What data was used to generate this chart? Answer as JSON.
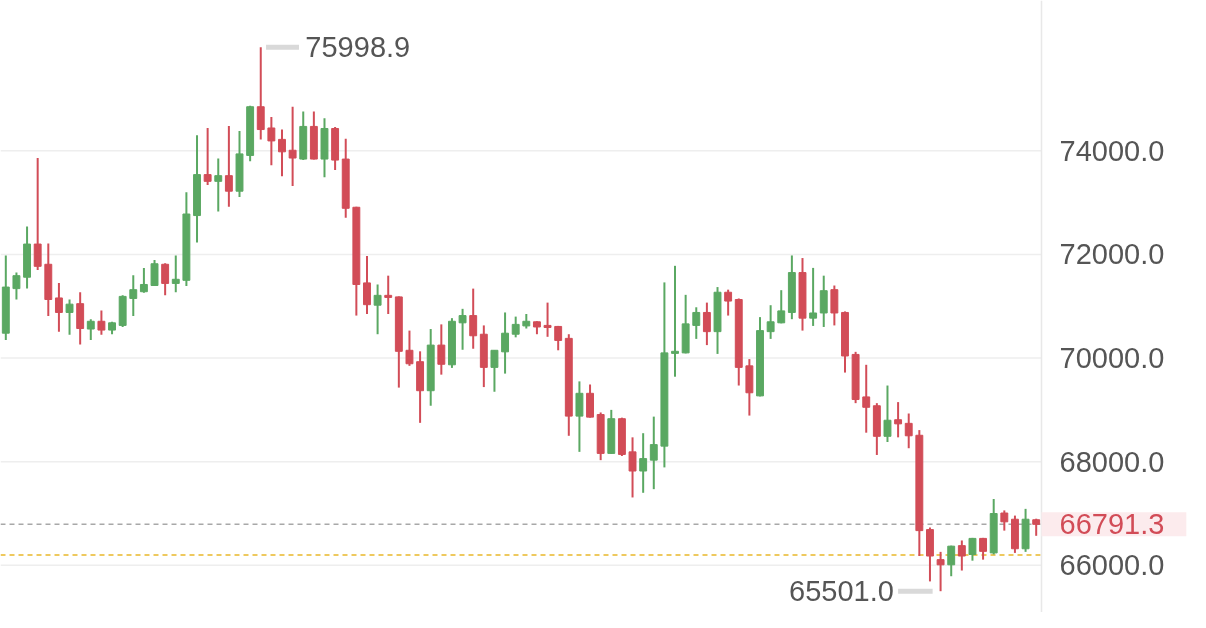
{
  "chart_data": {
    "type": "candlestick",
    "categories": [
      null,
      null,
      null,
      null,
      null,
      null,
      null,
      null,
      null,
      null,
      null,
      null,
      null,
      null,
      null,
      null,
      null,
      null,
      null,
      null,
      null,
      null,
      null,
      null,
      null,
      null,
      null,
      null,
      null,
      null,
      null,
      null,
      null,
      null,
      null,
      null,
      null,
      null,
      null,
      null,
      null,
      null,
      null,
      null,
      null,
      null,
      null,
      null,
      null,
      null,
      null,
      null,
      null,
      null,
      null,
      null,
      null,
      null,
      null,
      null,
      null,
      null,
      null,
      null,
      null,
      null,
      null,
      null,
      null,
      null,
      null,
      null,
      null,
      null,
      null,
      null,
      null,
      null,
      null,
      null,
      null,
      null,
      null,
      null,
      null,
      null,
      null,
      null,
      null,
      null,
      null,
      null,
      null,
      null,
      null,
      null,
      null,
      null
    ],
    "ohlc": [
      [
        70480,
        71980,
        70350,
        71370
      ],
      [
        71340,
        71650,
        71130,
        71590
      ],
      [
        71560,
        72540,
        71340,
        72200
      ],
      [
        72200,
        73860,
        71700,
        71770
      ],
      [
        71810,
        72210,
        70810,
        71130
      ],
      [
        71160,
        71450,
        70510,
        70880
      ],
      [
        70880,
        71130,
        70450,
        71040
      ],
      [
        71050,
        71270,
        70260,
        70570
      ],
      [
        70560,
        70750,
        70350,
        70710
      ],
      [
        70710,
        70920,
        70450,
        70540
      ],
      [
        70540,
        70700,
        70460,
        70680
      ],
      [
        70630,
        71210,
        70600,
        71190
      ],
      [
        71150,
        71600,
        70810,
        71320
      ],
      [
        71280,
        71740,
        71260,
        71420
      ],
      [
        71400,
        71890,
        71390,
        71820
      ],
      [
        71810,
        71830,
        71210,
        71440
      ],
      [
        71440,
        71980,
        71270,
        71520
      ],
      [
        71500,
        73200,
        71390,
        72780
      ],
      [
        72750,
        74300,
        72230,
        73540
      ],
      [
        73540,
        74440,
        73340,
        73410
      ],
      [
        73410,
        73850,
        72830,
        73520
      ],
      [
        73520,
        74480,
        72920,
        73220
      ],
      [
        73220,
        74380,
        73110,
        73940
      ],
      [
        73910,
        74870,
        73800,
        74850
      ],
      [
        74850,
        75998.9,
        74220,
        74410
      ],
      [
        74440,
        74650,
        73720,
        74190
      ],
      [
        74220,
        74410,
        73510,
        73980
      ],
      [
        74010,
        74850,
        73320,
        73860
      ],
      [
        73840,
        74760,
        73820,
        74470
      ],
      [
        74470,
        74760,
        73830,
        73840
      ],
      [
        73840,
        74630,
        73490,
        74430
      ],
      [
        74430,
        74460,
        73630,
        73820
      ],
      [
        73840,
        74230,
        72710,
        72890
      ],
      [
        72910,
        72920,
        70820,
        71420
      ],
      [
        71450,
        71970,
        70850,
        71030
      ],
      [
        71020,
        71420,
        70460,
        71210
      ],
      [
        71210,
        71590,
        70850,
        71170
      ],
      [
        71180,
        71190,
        69430,
        70130
      ],
      [
        70150,
        70530,
        69850,
        69890
      ],
      [
        69930,
        70130,
        68750,
        69370
      ],
      [
        69370,
        70560,
        69080,
        70250
      ],
      [
        70250,
        70650,
        69680,
        69880
      ],
      [
        69870,
        70770,
        69810,
        70710
      ],
      [
        70680,
        70950,
        70160,
        70820
      ],
      [
        70820,
        71340,
        70180,
        70430
      ],
      [
        70460,
        70630,
        69440,
        69820
      ],
      [
        69820,
        70150,
        69350,
        70150
      ],
      [
        70120,
        70880,
        69700,
        70480
      ],
      [
        70460,
        70800,
        70400,
        70650
      ],
      [
        70620,
        70850,
        70570,
        70710
      ],
      [
        70700,
        70710,
        70460,
        70600
      ],
      [
        70630,
        71070,
        70410,
        70590
      ],
      [
        70610,
        70620,
        70150,
        70340
      ],
      [
        70380,
        70460,
        68500,
        68880
      ],
      [
        68880,
        69550,
        68190,
        69320
      ],
      [
        69320,
        69490,
        68850,
        68860
      ],
      [
        68910,
        68950,
        68030,
        68160
      ],
      [
        68160,
        69000,
        68150,
        68830
      ],
      [
        68830,
        68850,
        68110,
        68140
      ],
      [
        68190,
        68470,
        67310,
        67820
      ],
      [
        67820,
        68550,
        67400,
        68060
      ],
      [
        68030,
        68870,
        67470,
        68330
      ],
      [
        68300,
        71460,
        67890,
        70100
      ],
      [
        70090,
        71780,
        69640,
        70130
      ],
      [
        70100,
        71220,
        70090,
        70660
      ],
      [
        70630,
        70980,
        70370,
        70880
      ],
      [
        70880,
        71070,
        70250,
        70510
      ],
      [
        70510,
        71370,
        70080,
        71270
      ],
      [
        71270,
        71320,
        70820,
        71100
      ],
      [
        71130,
        71150,
        69470,
        69820
      ],
      [
        69850,
        69980,
        68890,
        69330
      ],
      [
        69270,
        70790,
        69260,
        70530
      ],
      [
        70510,
        71020,
        70370,
        70700
      ],
      [
        70680,
        71310,
        70670,
        70910
      ],
      [
        70880,
        71980,
        70750,
        71650
      ],
      [
        71650,
        71930,
        70530,
        70770
      ],
      [
        70770,
        71740,
        70620,
        70870
      ],
      [
        70870,
        71590,
        70600,
        71300
      ],
      [
        71320,
        71400,
        70630,
        70870
      ],
      [
        70880,
        70900,
        69720,
        70040
      ],
      [
        70070,
        70120,
        69130,
        69200
      ],
      [
        69250,
        69870,
        68560,
        69050
      ],
      [
        69080,
        69130,
        68130,
        68490
      ],
      [
        68490,
        69470,
        68380,
        68800
      ],
      [
        68810,
        69150,
        68470,
        68730
      ],
      [
        68740,
        68930,
        68260,
        68500
      ],
      [
        68510,
        68610,
        66180,
        66670
      ],
      [
        66690,
        66730,
        65690,
        66180
      ],
      [
        66110,
        66260,
        65501.0,
        66010
      ],
      [
        66010,
        66380,
        65790,
        66370
      ],
      [
        66380,
        66480,
        65900,
        66180
      ],
      [
        66210,
        66530,
        66090,
        66520
      ],
      [
        66520,
        66530,
        66110,
        66270
      ],
      [
        66240,
        67280,
        66210,
        67000
      ],
      [
        67010,
        67060,
        66670,
        66840
      ],
      [
        66890,
        66960,
        66240,
        66320
      ],
      [
        66320,
        67090,
        66260,
        66890
      ],
      [
        66880,
        66900,
        66570,
        66791.3
      ]
    ],
    "colors": [
      "#5aa862",
      "#5aa862",
      "#5aa862",
      "#d24c57",
      "#d24c57",
      "#d24c57",
      "#5aa862",
      "#d24c57",
      "#5aa862",
      "#d24c57",
      "#5aa862",
      "#5aa862",
      "#5aa862",
      "#5aa862",
      "#5aa862",
      "#d24c57",
      "#5aa862",
      "#5aa862",
      "#5aa862",
      "#d24c57",
      "#5aa862",
      "#d24c57",
      "#5aa862",
      "#5aa862",
      "#d24c57",
      "#d24c57",
      "#d24c57",
      "#d24c57",
      "#5aa862",
      "#d24c57",
      "#5aa862",
      "#d24c57",
      "#d24c57",
      "#d24c57",
      "#d24c57",
      "#5aa862",
      "#d24c57",
      "#d24c57",
      "#d24c57",
      "#d24c57",
      "#5aa862",
      "#d24c57",
      "#5aa862",
      "#5aa862",
      "#d24c57",
      "#d24c57",
      "#5aa862",
      "#5aa862",
      "#5aa862",
      "#5aa862",
      "#d24c57",
      "#d24c57",
      "#d24c57",
      "#d24c57",
      "#5aa862",
      "#d24c57",
      "#d24c57",
      "#5aa862",
      "#d24c57",
      "#d24c57",
      "#5aa862",
      "#5aa862",
      "#5aa862",
      "#5aa862",
      "#5aa862",
      "#5aa862",
      "#d24c57",
      "#5aa862",
      "#d24c57",
      "#d24c57",
      "#d24c57",
      "#5aa862",
      "#5aa862",
      "#5aa862",
      "#5aa862",
      "#d24c57",
      "#5aa862",
      "#5aa862",
      "#d24c57",
      "#d24c57",
      "#d24c57",
      "#d24c57",
      "#d24c57",
      "#5aa862",
      "#d24c57",
      "#d24c57",
      "#d24c57",
      "#d24c57",
      "#d24c57",
      "#5aa862",
      "#d24c57",
      "#5aa862",
      "#d24c57",
      "#5aa862",
      "#d24c57",
      "#d24c57",
      "#5aa862",
      "#d24c57"
    ],
    "ylim": [
      65090,
      76900
    ],
    "yticks": [
      {
        "value": 66000,
        "label": "66000.0"
      },
      {
        "value": 68000,
        "label": "68000.0"
      },
      {
        "value": 70000,
        "label": "70000.0"
      },
      {
        "value": 72000,
        "label": "72000.0"
      },
      {
        "value": 74000,
        "label": "74000.0"
      }
    ],
    "tick_labels": "y",
    "grid": "y",
    "ref_lines": [
      {
        "axis": "y",
        "value": 66791.3,
        "label": "66791.3",
        "color": "#a8a8a8",
        "line_style": "dashed"
      },
      {
        "axis": "y",
        "value": 66200,
        "color": "#e9b82a",
        "line_style": "dashed"
      }
    ],
    "annotations": [
      "75998.9",
      "65501.0"
    ]
  }
}
